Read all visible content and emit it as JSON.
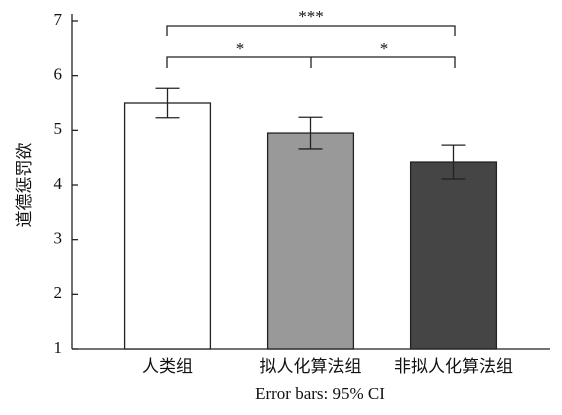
{
  "chart_data": {
    "type": "bar",
    "ylabel": "道德惩罚欲",
    "xlabel": "Error bars: 95% CI",
    "categories": [
      "人类组",
      "拟人化算法组",
      "非拟人化算法组"
    ],
    "values": [
      5.5,
      4.95,
      4.42
    ],
    "errors": [
      0.27,
      0.29,
      0.31
    ],
    "colors": [
      "#ffffff",
      "#999999",
      "#454545"
    ],
    "ylim": [
      1,
      7
    ],
    "yticks": [
      1,
      2,
      3,
      4,
      5,
      6,
      7
    ],
    "annotations": [
      "***",
      "*",
      "*"
    ]
  }
}
